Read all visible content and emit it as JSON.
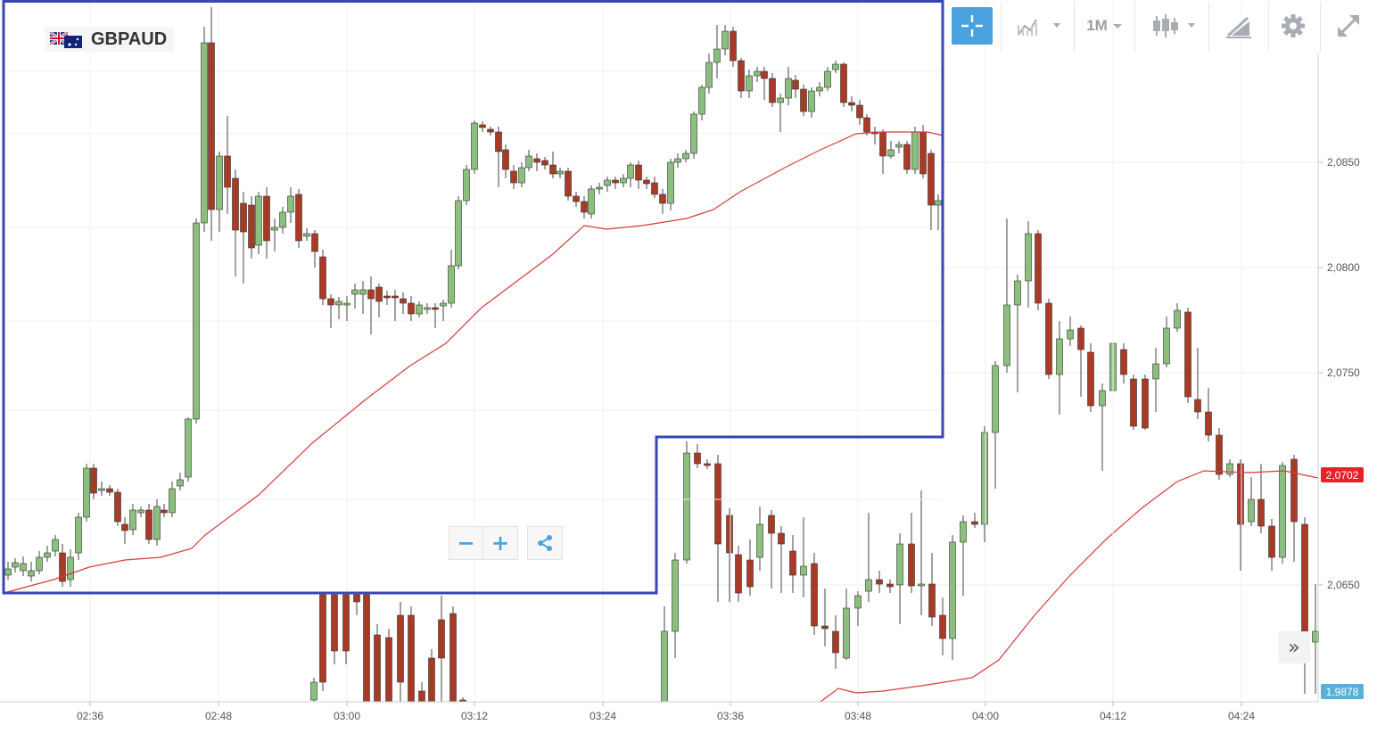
{
  "symbol": {
    "name": "GBPAUD",
    "flag_icon": "gb-au-flag-icon"
  },
  "toolbar": {
    "crosshair_icon": "crosshair-icon",
    "chart_type_icon": "line-chart-icon",
    "timeframe_label": "1M",
    "candles_icon": "candlestick-icon",
    "draw_icon": "drawing-tool-icon",
    "settings_icon": "gear-icon",
    "fullscreen_icon": "expand-icon",
    "active_color": "#4aa3df"
  },
  "zoom": {
    "minus_label": "−",
    "plus_label": "+",
    "share_icon": "share-icon"
  },
  "scroll_right": {
    "label": "»"
  },
  "overlay_selection": {
    "color": "#3a45b8"
  },
  "chart_data": {
    "type": "candlestick",
    "x_ticks": [
      "02:36",
      "02:48",
      "03:00",
      "03:12",
      "03:24",
      "03:36",
      "03:48",
      "04:00",
      "04:12",
      "04:24"
    ],
    "y_ticks": [
      "2,0850",
      "2,0800",
      "2,0750",
      "2,0650"
    ],
    "current_price_label": "2,0702",
    "low_price_label": "1,9878",
    "colors": {
      "up": "#8bbf7d",
      "down": "#a93a26",
      "ma": "#d93a3a",
      "current_tag": "#e8202a",
      "low_tag": "#5ab0d8"
    },
    "ma_shown": true,
    "grid": true
  }
}
